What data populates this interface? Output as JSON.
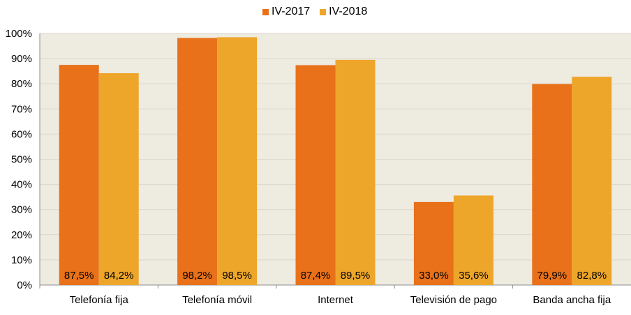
{
  "chart_data": {
    "type": "bar",
    "categories": [
      "Telefonía fija",
      "Telefonía móvil",
      "Internet",
      "Televisión de pago",
      "Banda ancha fija"
    ],
    "series": [
      {
        "name": "IV-2017",
        "values": [
          87.5,
          98.2,
          87.4,
          33.0,
          79.9
        ],
        "labels": [
          "87,5%",
          "98,2%",
          "87,4%",
          "33,0%",
          "79,9%"
        ],
        "color": "#E8711A"
      },
      {
        "name": "IV-2018",
        "values": [
          84.2,
          98.5,
          89.5,
          35.6,
          82.8
        ],
        "labels": [
          "84,2%",
          "98,5%",
          "89,5%",
          "35,6%",
          "82,8%"
        ],
        "color": "#EDA62A"
      }
    ],
    "ylim": [
      0,
      100
    ],
    "yticks": [
      "0%",
      "10%",
      "20%",
      "30%",
      "40%",
      "50%",
      "60%",
      "70%",
      "80%",
      "90%",
      "100%"
    ],
    "grid": true,
    "legend_position": "top-center",
    "plot_background": "#EEEBE1",
    "gridline_color": "#D9D6CC"
  }
}
